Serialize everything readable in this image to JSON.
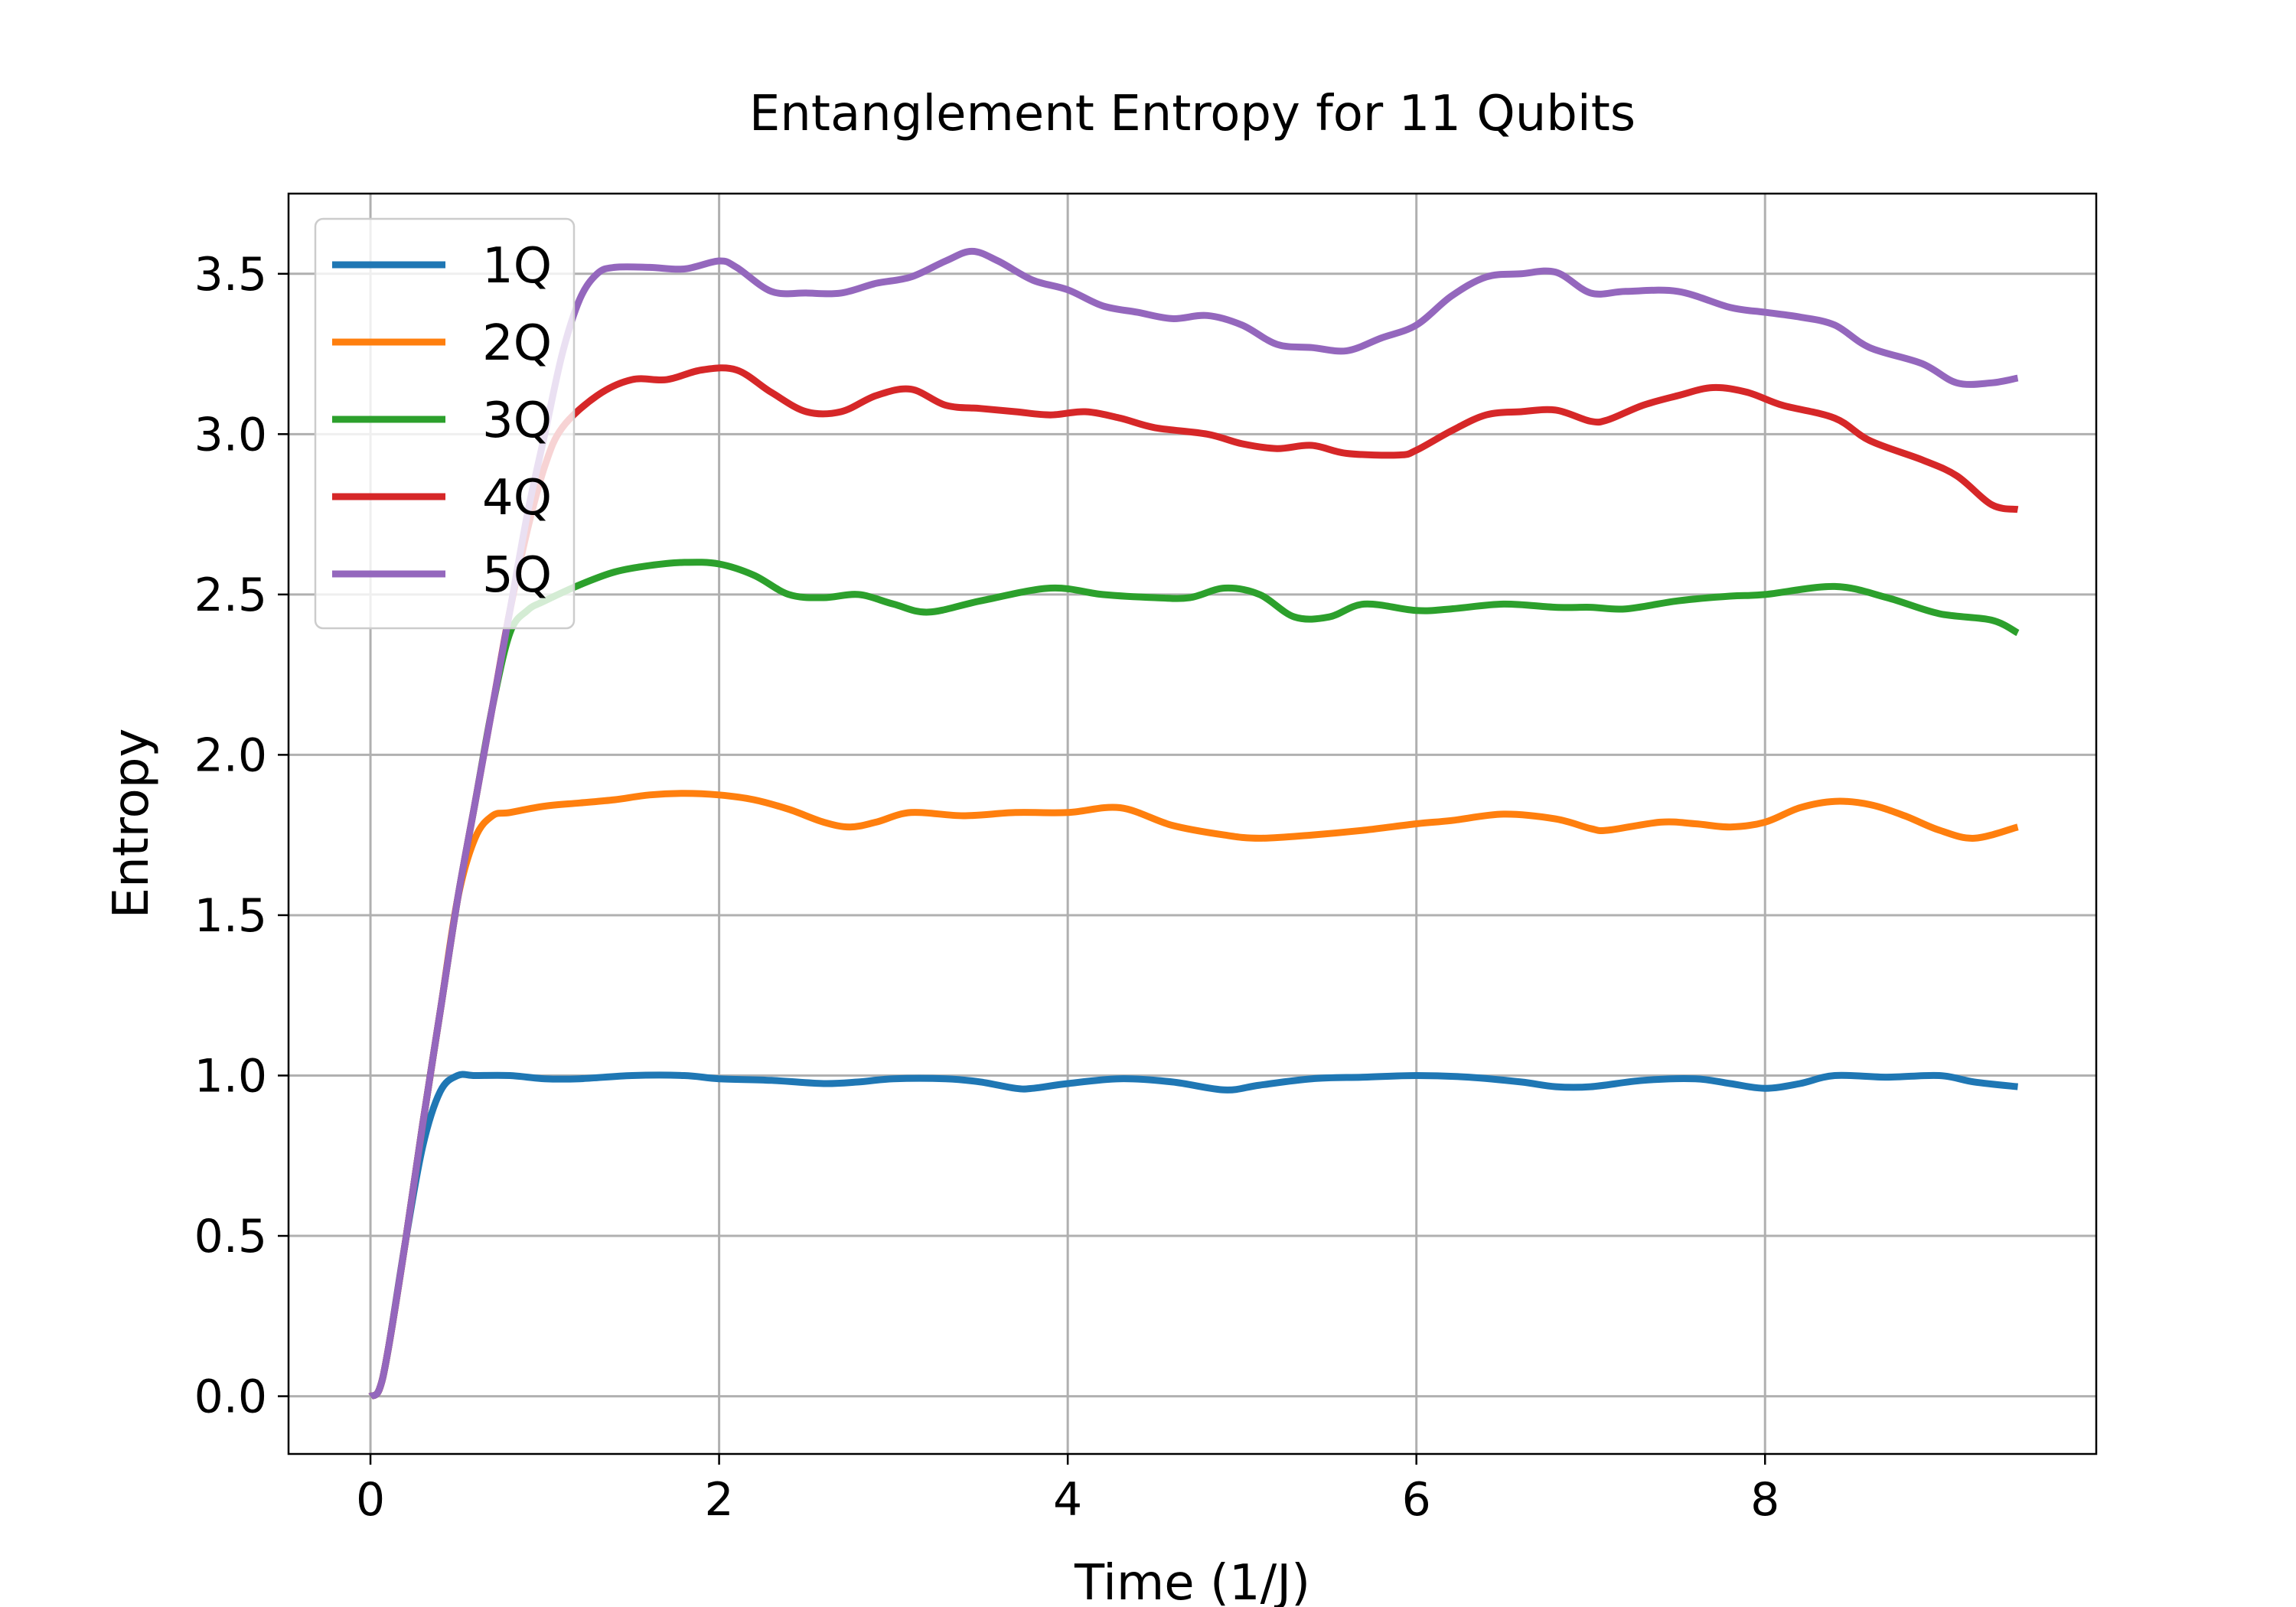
{
  "chart_data": {
    "type": "line",
    "title": "Entanglement Entropy for 11 Qubits",
    "xlabel": "Time (1/J)",
    "ylabel": "Entropy",
    "xlim": [
      -0.47,
      9.9
    ],
    "ylim": [
      -0.18,
      3.75
    ],
    "xticks": [
      0,
      2,
      4,
      6,
      8
    ],
    "yticks": [
      0.0,
      0.5,
      1.0,
      1.5,
      2.0,
      2.5,
      3.0,
      3.5
    ],
    "xtick_labels": [
      "0",
      "2",
      "4",
      "6",
      "8"
    ],
    "ytick_labels": [
      "0.0",
      "0.5",
      "1.0",
      "1.5",
      "2.0",
      "2.5",
      "3.0",
      "3.5"
    ],
    "grid": true,
    "legend_position": "upper-left",
    "series": [
      {
        "name": "1Q",
        "color": "#1f77b4",
        "points": [
          [
            0,
            0
          ],
          [
            0.05,
            0.02
          ],
          [
            0.1,
            0.14
          ],
          [
            0.2,
            0.48
          ],
          [
            0.3,
            0.78
          ],
          [
            0.4,
            0.95
          ],
          [
            0.5,
            1.0
          ],
          [
            0.6,
            1.0
          ],
          [
            0.8,
            1.0
          ],
          [
            1.0,
            0.99
          ],
          [
            1.2,
            0.99
          ],
          [
            1.5,
            1.0
          ],
          [
            1.8,
            1.0
          ],
          [
            2.0,
            0.99
          ],
          [
            2.3,
            0.985
          ],
          [
            2.6,
            0.975
          ],
          [
            2.8,
            0.98
          ],
          [
            3.0,
            0.99
          ],
          [
            3.3,
            0.99
          ],
          [
            3.5,
            0.98
          ],
          [
            3.7,
            0.96
          ],
          [
            3.8,
            0.96
          ],
          [
            4.0,
            0.975
          ],
          [
            4.3,
            0.99
          ],
          [
            4.6,
            0.98
          ],
          [
            4.9,
            0.955
          ],
          [
            5.1,
            0.97
          ],
          [
            5.4,
            0.99
          ],
          [
            5.7,
            0.995
          ],
          [
            6.0,
            1.0
          ],
          [
            6.3,
            0.995
          ],
          [
            6.6,
            0.98
          ],
          [
            6.8,
            0.965
          ],
          [
            7.0,
            0.965
          ],
          [
            7.3,
            0.985
          ],
          [
            7.6,
            0.99
          ],
          [
            7.8,
            0.975
          ],
          [
            8.0,
            0.96
          ],
          [
            8.2,
            0.975
          ],
          [
            8.4,
            1.0
          ],
          [
            8.7,
            0.995
          ],
          [
            9.0,
            1.0
          ],
          [
            9.2,
            0.98
          ],
          [
            9.45,
            0.965
          ]
        ]
      },
      {
        "name": "2Q",
        "color": "#ff7f0e",
        "points": [
          [
            0,
            0
          ],
          [
            0.05,
            0.02
          ],
          [
            0.1,
            0.14
          ],
          [
            0.2,
            0.48
          ],
          [
            0.3,
            0.85
          ],
          [
            0.4,
            1.2
          ],
          [
            0.5,
            1.55
          ],
          [
            0.6,
            1.74
          ],
          [
            0.7,
            1.81
          ],
          [
            0.8,
            1.82
          ],
          [
            1.0,
            1.84
          ],
          [
            1.2,
            1.85
          ],
          [
            1.4,
            1.86
          ],
          [
            1.6,
            1.875
          ],
          [
            1.8,
            1.88
          ],
          [
            2.0,
            1.875
          ],
          [
            2.2,
            1.86
          ],
          [
            2.4,
            1.83
          ],
          [
            2.6,
            1.79
          ],
          [
            2.75,
            1.775
          ],
          [
            2.9,
            1.79
          ],
          [
            3.1,
            1.82
          ],
          [
            3.4,
            1.81
          ],
          [
            3.7,
            1.82
          ],
          [
            4.0,
            1.82
          ],
          [
            4.3,
            1.835
          ],
          [
            4.6,
            1.78
          ],
          [
            4.9,
            1.75
          ],
          [
            5.1,
            1.74
          ],
          [
            5.4,
            1.75
          ],
          [
            5.7,
            1.765
          ],
          [
            6.0,
            1.785
          ],
          [
            6.2,
            1.795
          ],
          [
            6.5,
            1.815
          ],
          [
            6.8,
            1.8
          ],
          [
            7.0,
            1.77
          ],
          [
            7.1,
            1.765
          ],
          [
            7.4,
            1.79
          ],
          [
            7.6,
            1.785
          ],
          [
            7.8,
            1.775
          ],
          [
            8.0,
            1.79
          ],
          [
            8.2,
            1.835
          ],
          [
            8.4,
            1.855
          ],
          [
            8.6,
            1.845
          ],
          [
            8.8,
            1.81
          ],
          [
            9.0,
            1.765
          ],
          [
            9.2,
            1.74
          ],
          [
            9.45,
            1.775
          ]
        ]
      },
      {
        "name": "3Q",
        "color": "#2ca02c",
        "points": [
          [
            0,
            0
          ],
          [
            0.05,
            0.02
          ],
          [
            0.1,
            0.14
          ],
          [
            0.2,
            0.48
          ],
          [
            0.3,
            0.85
          ],
          [
            0.4,
            1.2
          ],
          [
            0.5,
            1.55
          ],
          [
            0.6,
            1.85
          ],
          [
            0.7,
            2.15
          ],
          [
            0.8,
            2.38
          ],
          [
            0.9,
            2.45
          ],
          [
            1.0,
            2.48
          ],
          [
            1.2,
            2.53
          ],
          [
            1.4,
            2.57
          ],
          [
            1.6,
            2.59
          ],
          [
            1.8,
            2.6
          ],
          [
            2.0,
            2.595
          ],
          [
            2.2,
            2.56
          ],
          [
            2.4,
            2.5
          ],
          [
            2.6,
            2.49
          ],
          [
            2.8,
            2.5
          ],
          [
            3.0,
            2.47
          ],
          [
            3.2,
            2.445
          ],
          [
            3.5,
            2.48
          ],
          [
            3.9,
            2.52
          ],
          [
            4.2,
            2.5
          ],
          [
            4.5,
            2.49
          ],
          [
            4.7,
            2.49
          ],
          [
            4.9,
            2.52
          ],
          [
            5.1,
            2.5
          ],
          [
            5.3,
            2.43
          ],
          [
            5.5,
            2.43
          ],
          [
            5.7,
            2.47
          ],
          [
            6.0,
            2.45
          ],
          [
            6.2,
            2.455
          ],
          [
            6.5,
            2.47
          ],
          [
            6.8,
            2.46
          ],
          [
            7.0,
            2.46
          ],
          [
            7.2,
            2.455
          ],
          [
            7.5,
            2.48
          ],
          [
            7.8,
            2.495
          ],
          [
            8.0,
            2.5
          ],
          [
            8.4,
            2.525
          ],
          [
            8.7,
            2.49
          ],
          [
            9.0,
            2.44
          ],
          [
            9.3,
            2.42
          ],
          [
            9.45,
            2.38
          ]
        ]
      },
      {
        "name": "4Q",
        "color": "#d62728",
        "points": [
          [
            0,
            0
          ],
          [
            0.05,
            0.02
          ],
          [
            0.1,
            0.14
          ],
          [
            0.2,
            0.48
          ],
          [
            0.3,
            0.85
          ],
          [
            0.4,
            1.2
          ],
          [
            0.5,
            1.55
          ],
          [
            0.6,
            1.85
          ],
          [
            0.7,
            2.15
          ],
          [
            0.8,
            2.45
          ],
          [
            0.9,
            2.7
          ],
          [
            1.0,
            2.9
          ],
          [
            1.1,
            3.02
          ],
          [
            1.3,
            3.12
          ],
          [
            1.5,
            3.17
          ],
          [
            1.7,
            3.17
          ],
          [
            1.9,
            3.2
          ],
          [
            2.1,
            3.2
          ],
          [
            2.3,
            3.13
          ],
          [
            2.5,
            3.07
          ],
          [
            2.7,
            3.07
          ],
          [
            2.9,
            3.12
          ],
          [
            3.1,
            3.14
          ],
          [
            3.3,
            3.09
          ],
          [
            3.5,
            3.08
          ],
          [
            3.7,
            3.07
          ],
          [
            3.9,
            3.06
          ],
          [
            4.1,
            3.07
          ],
          [
            4.3,
            3.05
          ],
          [
            4.5,
            3.02
          ],
          [
            4.8,
            3.0
          ],
          [
            5.0,
            2.97
          ],
          [
            5.2,
            2.955
          ],
          [
            5.4,
            2.965
          ],
          [
            5.6,
            2.94
          ],
          [
            5.9,
            2.935
          ],
          [
            6.0,
            2.95
          ],
          [
            6.2,
            3.01
          ],
          [
            6.4,
            3.06
          ],
          [
            6.6,
            3.07
          ],
          [
            6.8,
            3.075
          ],
          [
            7.0,
            3.04
          ],
          [
            7.1,
            3.045
          ],
          [
            7.3,
            3.09
          ],
          [
            7.5,
            3.12
          ],
          [
            7.7,
            3.145
          ],
          [
            7.9,
            3.13
          ],
          [
            8.1,
            3.09
          ],
          [
            8.4,
            3.05
          ],
          [
            8.6,
            2.98
          ],
          [
            8.9,
            2.92
          ],
          [
            9.1,
            2.87
          ],
          [
            9.3,
            2.78
          ],
          [
            9.45,
            2.765
          ]
        ]
      },
      {
        "name": "5Q",
        "color": "#9467bd",
        "points": [
          [
            0,
            0
          ],
          [
            0.05,
            0.02
          ],
          [
            0.1,
            0.14
          ],
          [
            0.2,
            0.48
          ],
          [
            0.3,
            0.85
          ],
          [
            0.4,
            1.2
          ],
          [
            0.5,
            1.55
          ],
          [
            0.6,
            1.85
          ],
          [
            0.7,
            2.15
          ],
          [
            0.8,
            2.45
          ],
          [
            0.9,
            2.75
          ],
          [
            1.0,
            3.0
          ],
          [
            1.1,
            3.25
          ],
          [
            1.2,
            3.42
          ],
          [
            1.3,
            3.5
          ],
          [
            1.4,
            3.52
          ],
          [
            1.6,
            3.52
          ],
          [
            1.8,
            3.515
          ],
          [
            2.0,
            3.54
          ],
          [
            2.1,
            3.52
          ],
          [
            2.3,
            3.445
          ],
          [
            2.5,
            3.44
          ],
          [
            2.7,
            3.44
          ],
          [
            2.9,
            3.47
          ],
          [
            3.1,
            3.49
          ],
          [
            3.3,
            3.54
          ],
          [
            3.45,
            3.57
          ],
          [
            3.6,
            3.54
          ],
          [
            3.8,
            3.48
          ],
          [
            4.0,
            3.45
          ],
          [
            4.2,
            3.4
          ],
          [
            4.4,
            3.38
          ],
          [
            4.6,
            3.36
          ],
          [
            4.8,
            3.37
          ],
          [
            5.0,
            3.34
          ],
          [
            5.2,
            3.28
          ],
          [
            5.4,
            3.27
          ],
          [
            5.6,
            3.26
          ],
          [
            5.8,
            3.3
          ],
          [
            6.0,
            3.34
          ],
          [
            6.2,
            3.43
          ],
          [
            6.4,
            3.49
          ],
          [
            6.6,
            3.5
          ],
          [
            6.8,
            3.505
          ],
          [
            7.0,
            3.44
          ],
          [
            7.2,
            3.445
          ],
          [
            7.5,
            3.445
          ],
          [
            7.8,
            3.395
          ],
          [
            8.0,
            3.38
          ],
          [
            8.2,
            3.365
          ],
          [
            8.4,
            3.34
          ],
          [
            8.6,
            3.27
          ],
          [
            8.9,
            3.22
          ],
          [
            9.1,
            3.16
          ],
          [
            9.3,
            3.16
          ],
          [
            9.45,
            3.175
          ]
        ]
      }
    ]
  }
}
